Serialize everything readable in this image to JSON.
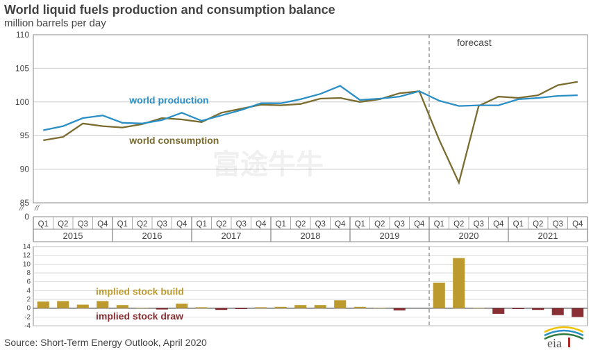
{
  "title": "World liquid fuels production and consumption balance",
  "subtitle": "million barrels per day",
  "source": "Source: Short-Term Energy Outlook, April 2020",
  "forecast_label": "forecast",
  "line_chart": {
    "type": "line",
    "categories": [
      "Q1",
      "Q2",
      "Q3",
      "Q4",
      "Q1",
      "Q2",
      "Q3",
      "Q4",
      "Q1",
      "Q2",
      "Q3",
      "Q4",
      "Q1",
      "Q2",
      "Q3",
      "Q4",
      "Q1",
      "Q2",
      "Q3",
      "Q4",
      "Q1",
      "Q2",
      "Q3",
      "Q4",
      "Q1",
      "Q2",
      "Q3",
      "Q4"
    ],
    "years": [
      "2015",
      "2016",
      "2017",
      "2018",
      "2019",
      "2020",
      "2021"
    ],
    "ylim": [
      85,
      110
    ],
    "axis_break_low": 0,
    "yticks": [
      0,
      85,
      90,
      95,
      100,
      105,
      110
    ],
    "grid_color": "#cccccc",
    "axis_color": "#888888",
    "tick_font_size": 12,
    "year_font_size": 13,
    "forecast_start_index": 20,
    "forecast_line_color": "#999999",
    "series_label_production": "world production",
    "series_label_consumption": "world consumption",
    "production_color": "#2a8fc4",
    "consumption_color": "#7a6b2f",
    "line_width": 2.3,
    "production": [
      95.8,
      96.4,
      97.6,
      98.0,
      96.9,
      96.8,
      97.3,
      98.4,
      97.2,
      98.0,
      98.8,
      99.8,
      99.8,
      100.4,
      101.2,
      102.4,
      100.3,
      100.5,
      100.8,
      101.6,
      100.2,
      99.4,
      99.5,
      99.5,
      100.4,
      100.6,
      100.9,
      101.0
    ],
    "consumption": [
      94.3,
      94.8,
      96.8,
      96.4,
      96.2,
      96.7,
      97.6,
      97.4,
      97.0,
      98.4,
      99.0,
      99.6,
      99.5,
      99.7,
      100.5,
      100.6,
      100.0,
      100.4,
      101.3,
      101.6,
      94.4,
      88.0,
      99.4,
      100.8,
      100.6,
      101.0,
      102.5,
      103.0
    ]
  },
  "bar_chart": {
    "type": "bar",
    "ylim": [
      -4,
      14
    ],
    "yticks": [
      -4,
      -2,
      0,
      2,
      4,
      6,
      8,
      10,
      12,
      14
    ],
    "tick_font_size": 10,
    "axis_color": "#888888",
    "build_color": "#bd9a2e",
    "draw_color": "#8a2f34",
    "label_build": "implied stock  build",
    "label_draw": "implied stock draw",
    "bar_width_ratio": 0.6,
    "values": [
      1.5,
      1.6,
      0.8,
      1.6,
      0.7,
      0.1,
      -0.3,
      1.0,
      0.2,
      -0.4,
      -0.2,
      0.2,
      0.3,
      0.7,
      0.7,
      1.8,
      0.3,
      0.1,
      -0.5,
      0.0,
      5.8,
      11.4,
      0.1,
      -1.3,
      -0.2,
      -0.4,
      -1.6,
      -2.0
    ]
  },
  "watermark_text": "富途牛牛"
}
